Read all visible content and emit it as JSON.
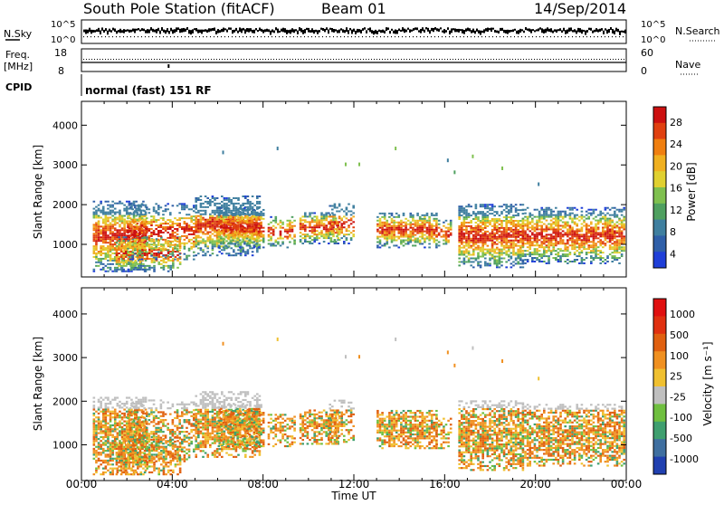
{
  "header": {
    "station": "South Pole Station (fitACF)",
    "beam": "Beam 01",
    "date": "14/Sep/2014"
  },
  "top_panels": {
    "nsky_label": "N.Sky",
    "nsky_tick_top": "10^5",
    "nsky_tick_bottom": "10^0",
    "nsearch_label": "N.Search",
    "nsearch_tick_top": "10^5",
    "nsearch_tick_bottom": "10^0",
    "freq_label_line1": "Freq.",
    "freq_label_line2": "[MHz]",
    "freq_tick_top": "18",
    "freq_tick_bottom": "8",
    "nave_label": "Nave",
    "nave_tick_top": "60",
    "nave_tick_bottom": "0",
    "cpid_label": "CPID",
    "cpid_text": "normal (fast) 151 RF"
  },
  "chart_data": [
    {
      "type": "heatmap",
      "panel": "power",
      "xlabel": "Time UT",
      "ylabel": "Slant Range [km]",
      "xlim_hours": [
        0,
        24
      ],
      "ylim_km": [
        180,
        4600
      ],
      "y_ticks": [
        1000,
        2000,
        3000,
        4000
      ],
      "colorbar_label": "Power [dB]",
      "colorbar_ticks": [
        "4",
        "8",
        "12",
        "16",
        "20",
        "24",
        "28"
      ],
      "colorbar_colors": [
        "#1f3fd8",
        "#2f5fa8",
        "#3f7f9f",
        "#4fa060",
        "#7fc04f",
        "#e0d030",
        "#f0b020",
        "#f07f10",
        "#e04010",
        "#cc1010"
      ]
    },
    {
      "type": "heatmap",
      "panel": "velocity",
      "xlabel": "Time UT",
      "ylabel": "Slant Range [km]",
      "xlim_hours": [
        0,
        24
      ],
      "ylim_km": [
        180,
        4600
      ],
      "y_ticks": [
        1000,
        2000,
        3000,
        4000
      ],
      "x_ticks": [
        "00:00",
        "04:00",
        "08:00",
        "12:00",
        "16:00",
        "20:00",
        "00:00"
      ],
      "colorbar_label": "Velocity [m s⁻¹]",
      "colorbar_ticks": [
        "1000",
        "500",
        "100",
        "25",
        "-25",
        "-100",
        "-500",
        "-1000"
      ],
      "colorbar_colors": [
        "#2040b0",
        "#3f6fa0",
        "#3f9f6f",
        "#6fbf3f",
        "#bfbfbf",
        "#f0c030",
        "#f09020",
        "#e06010",
        "#e03010",
        "#e01010"
      ]
    }
  ]
}
